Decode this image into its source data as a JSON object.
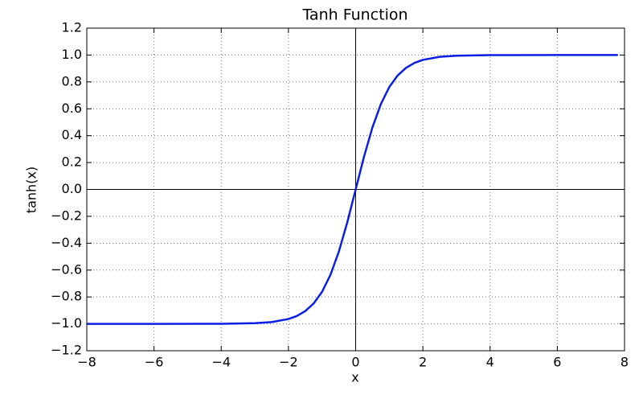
{
  "chart_data": {
    "type": "line",
    "title": "Tanh Function",
    "x_label": "x",
    "y_label": "tanh(x)",
    "x": [
      -8,
      -6,
      -4,
      -3,
      -2.5,
      -2,
      -1.75,
      -1.5,
      -1.25,
      -1,
      -0.75,
      -0.5,
      -0.25,
      0,
      0.25,
      0.5,
      0.75,
      1,
      1.25,
      1.5,
      1.75,
      2,
      2.5,
      3,
      4,
      6,
      7.8
    ],
    "series": [
      {
        "name": "tanh(x)",
        "color": "#0a1ee6",
        "values": [
          -1.0,
          -0.99999,
          -0.9993,
          -0.9951,
          -0.9866,
          -0.964,
          -0.9414,
          -0.9051,
          -0.8483,
          -0.7616,
          -0.6351,
          -0.4621,
          -0.2449,
          0,
          0.2449,
          0.4621,
          0.6351,
          0.7616,
          0.8483,
          0.9051,
          0.9414,
          0.964,
          0.9866,
          0.9951,
          0.9993,
          0.99999,
          1.0
        ]
      }
    ],
    "xlim": [
      -8,
      8
    ],
    "xticks": [
      {
        "value": -8,
        "label": "−8"
      },
      {
        "value": -6,
        "label": "−6"
      },
      {
        "value": -4,
        "label": "−4"
      },
      {
        "value": -2,
        "label": "−2"
      },
      0,
      2,
      4,
      6,
      8
    ],
    "ylim": [
      -1.2,
      1.2
    ],
    "yticks": [
      {
        "value": -1.2,
        "label": "−1.2"
      },
      {
        "value": -1.0,
        "label": "−1.0"
      },
      {
        "value": -0.8,
        "label": "−0.8"
      },
      {
        "value": -0.6,
        "label": "−0.6"
      },
      {
        "value": -0.4,
        "label": "−0.4"
      },
      {
        "value": -0.2,
        "label": "−0.2"
      },
      {
        "value": 0,
        "label": "0.0"
      },
      0.2,
      0.4,
      0.6,
      0.8,
      {
        "value": 1.0,
        "label": "1.0"
      },
      1.2
    ],
    "grid": true
  }
}
